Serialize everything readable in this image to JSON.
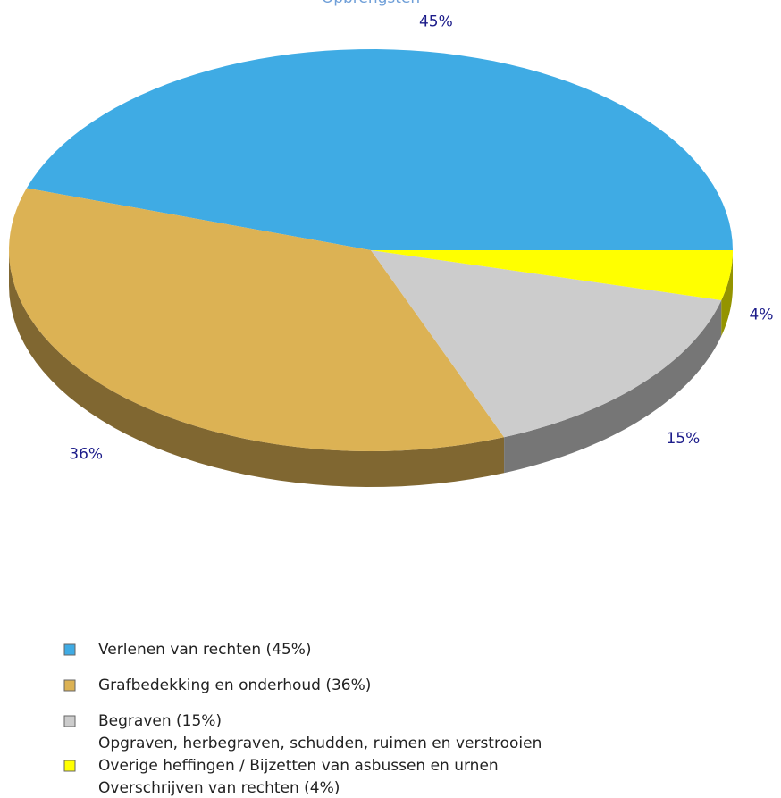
{
  "chart_data": {
    "type": "pie",
    "title": "Opbrengsten",
    "categories": [
      "Verlenen van rechten (45%)",
      "Grafbedekking en onderhoud (36%)",
      [
        "Begraven (15%)",
        "Opgraven, herbegraven, schudden, ruimen en verstrooien"
      ],
      [
        "Overige heffingen / Bijzetten van asbussen en urnen",
        "Overschrijven van rechten (4%)"
      ]
    ],
    "values": [
      45,
      36,
      15,
      4
    ],
    "value_labels": [
      "45%",
      "36%",
      "15%",
      "4%"
    ],
    "colors": [
      "#3fabe4",
      "#dcb254",
      "#cccccc",
      "#ffff00"
    ],
    "legend": "bottom"
  }
}
